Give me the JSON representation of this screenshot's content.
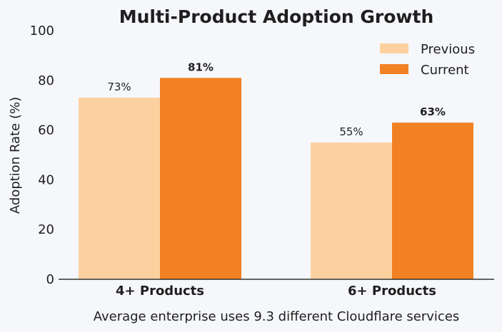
{
  "chart_data": {
    "type": "bar",
    "title": "Multi-Product Adoption Growth",
    "xlabel": "",
    "ylabel": "Adoption Rate (%)",
    "ylim": [
      0,
      100
    ],
    "yticks": [
      "0",
      "20",
      "40",
      "60",
      "80",
      "100"
    ],
    "categories": [
      "4+ Products",
      "6+ Products"
    ],
    "series": [
      {
        "name": "Previous",
        "values": [
          73,
          55
        ],
        "labels": [
          "73%",
          "55%"
        ],
        "color": "#fdd19f"
      },
      {
        "name": "Current",
        "values": [
          81,
          63
        ],
        "labels": [
          "81%",
          "63%"
        ],
        "color": "#f28124"
      }
    ],
    "legend_position": "top-right",
    "caption": "Average enterprise uses 9.3 different Cloudflare services",
    "grid": false
  }
}
